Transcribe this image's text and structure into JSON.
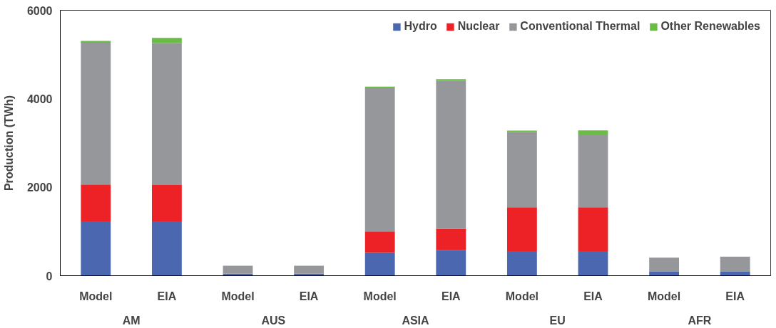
{
  "chart_data": {
    "type": "bar",
    "stacked": true,
    "ylabel": "Production (TWh)",
    "categories": [
      "Model",
      "EIA",
      "Model",
      "EIA",
      "Model",
      "EIA",
      "Model",
      "EIA",
      "Model",
      "EIA"
    ],
    "annotations": [
      "AM",
      "AUS",
      "ASIA",
      "EU",
      "AFR"
    ],
    "series": [
      {
        "name": "Hydro",
        "color": "#4a67b0",
        "values": [
          1230,
          1230,
          45,
          45,
          525,
          575,
          555,
          555,
          90,
          90
        ]
      },
      {
        "name": "Nuclear",
        "color": "#ec2227",
        "values": [
          835,
          820,
          0,
          0,
          475,
          485,
          995,
          995,
          0,
          0
        ]
      },
      {
        "name": "Conventional Thermal",
        "color": "#96979b",
        "values": [
          3205,
          3210,
          180,
          180,
          3255,
          3345,
          1705,
          1645,
          320,
          340
        ]
      },
      {
        "name": "Other Renewables",
        "color": "#6bbc45",
        "values": [
          40,
          115,
          0,
          0,
          20,
          40,
          25,
          90,
          0,
          0
        ]
      }
    ],
    "ylim": [
      0,
      6000
    ],
    "yticks": [
      0,
      2000,
      4000,
      6000
    ],
    "grid": false,
    "legend": "top right"
  }
}
